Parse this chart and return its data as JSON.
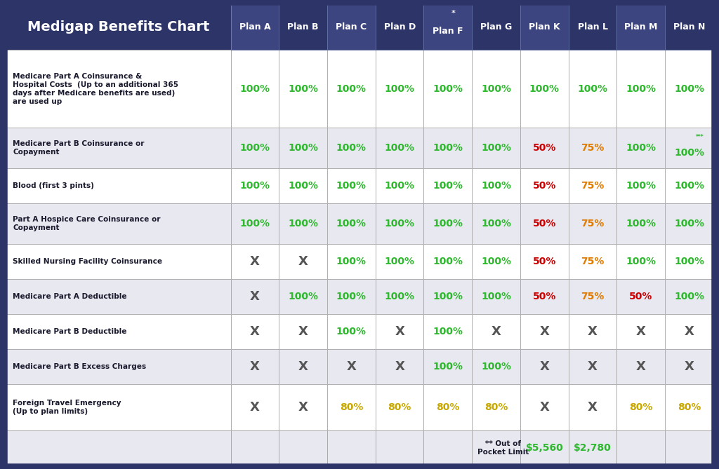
{
  "title": "Medigap Benefits Chart",
  "header_bg": "#2d3568",
  "col_headers": [
    "Plan A",
    "Plan B",
    "Plan C",
    "Plan D",
    "Plan F",
    "Plan G",
    "Plan K",
    "Plan L",
    "Plan M",
    "Plan N"
  ],
  "row_labels": [
    "Medicare Part A Coinsurance &\nHospital Costs  (Up to an additional 365\ndays after Medicare benefits are used)\nare used up",
    "Medicare Part B Coinsurance or\nCopayment",
    "Blood (first 3 pints)",
    "Part A Hospice Care Coinsurance or\nCopayment",
    "Skilled Nursing Facility Coinsurance",
    "Medicare Part A Deductible",
    "Medicare Part B Deductible",
    "Medicare Part B Excess Charges",
    "Foreign Travel Emergency\n(Up to plan limits)"
  ],
  "last_row_label": "** Out of\nPocket Limit",
  "last_row_values": [
    "",
    "",
    "",
    "",
    "",
    "",
    "$5,560",
    "$2,780",
    "",
    ""
  ],
  "last_row_colors": [
    "",
    "",
    "",
    "",
    "",
    "",
    "#2db82d",
    "#2db82d",
    "",
    ""
  ],
  "table_data": [
    [
      "100%",
      "100%",
      "100%",
      "100%",
      "100%",
      "100%",
      "100%",
      "100%",
      "100%",
      "100%"
    ],
    [
      "100%",
      "100%",
      "100%",
      "100%",
      "100%",
      "100%",
      "50%",
      "75%",
      "100%",
      "100%"
    ],
    [
      "100%",
      "100%",
      "100%",
      "100%",
      "100%",
      "100%",
      "50%",
      "75%",
      "100%",
      "100%"
    ],
    [
      "100%",
      "100%",
      "100%",
      "100%",
      "100%",
      "100%",
      "50%",
      "75%",
      "100%",
      "100%"
    ],
    [
      "X",
      "X",
      "100%",
      "100%",
      "100%",
      "100%",
      "50%",
      "75%",
      "100%",
      "100%"
    ],
    [
      "X",
      "100%",
      "100%",
      "100%",
      "100%",
      "100%",
      "50%",
      "75%",
      "50%",
      "100%"
    ],
    [
      "X",
      "X",
      "100%",
      "X",
      "100%",
      "X",
      "X",
      "X",
      "X",
      "X"
    ],
    [
      "X",
      "X",
      "X",
      "X",
      "100%",
      "100%",
      "X",
      "X",
      "X",
      "X"
    ],
    [
      "X",
      "X",
      "80%",
      "80%",
      "80%",
      "80%",
      "X",
      "X",
      "80%",
      "80%"
    ]
  ],
  "cell_colors": [
    [
      "#2db82d",
      "#2db82d",
      "#2db82d",
      "#2db82d",
      "#2db82d",
      "#2db82d",
      "#2db82d",
      "#2db82d",
      "#2db82d",
      "#2db82d"
    ],
    [
      "#2db82d",
      "#2db82d",
      "#2db82d",
      "#2db82d",
      "#2db82d",
      "#2db82d",
      "#cc0000",
      "#e07b00",
      "#2db82d",
      "#2db82d"
    ],
    [
      "#2db82d",
      "#2db82d",
      "#2db82d",
      "#2db82d",
      "#2db82d",
      "#2db82d",
      "#cc0000",
      "#e07b00",
      "#2db82d",
      "#2db82d"
    ],
    [
      "#2db82d",
      "#2db82d",
      "#2db82d",
      "#2db82d",
      "#2db82d",
      "#2db82d",
      "#cc0000",
      "#e07b00",
      "#2db82d",
      "#2db82d"
    ],
    [
      "#555555",
      "#555555",
      "#2db82d",
      "#2db82d",
      "#2db82d",
      "#2db82d",
      "#cc0000",
      "#e07b00",
      "#2db82d",
      "#2db82d"
    ],
    [
      "#555555",
      "#2db82d",
      "#2db82d",
      "#2db82d",
      "#2db82d",
      "#2db82d",
      "#cc0000",
      "#e07b00",
      "#cc0000",
      "#2db82d"
    ],
    [
      "#555555",
      "#555555",
      "#2db82d",
      "#555555",
      "#2db82d",
      "#555555",
      "#555555",
      "#555555",
      "#555555",
      "#555555"
    ],
    [
      "#555555",
      "#555555",
      "#555555",
      "#555555",
      "#2db82d",
      "#2db82d",
      "#555555",
      "#555555",
      "#555555",
      "#555555"
    ],
    [
      "#555555",
      "#555555",
      "#c8a800",
      "#c8a800",
      "#c8a800",
      "#c8a800",
      "#555555",
      "#555555",
      "#c8a800",
      "#c8a800"
    ]
  ],
  "row_bg": [
    "#ffffff",
    "#e8e8f0",
    "#ffffff",
    "#e8e8f0",
    "#ffffff",
    "#e8e8f0",
    "#ffffff",
    "#e8e8f0",
    "#ffffff"
  ],
  "last_row_bg": "#e8e8f0",
  "border_color": "#aaaaaa",
  "figure_bg": "#2d3568",
  "label_text_color": "#1a1a2e"
}
